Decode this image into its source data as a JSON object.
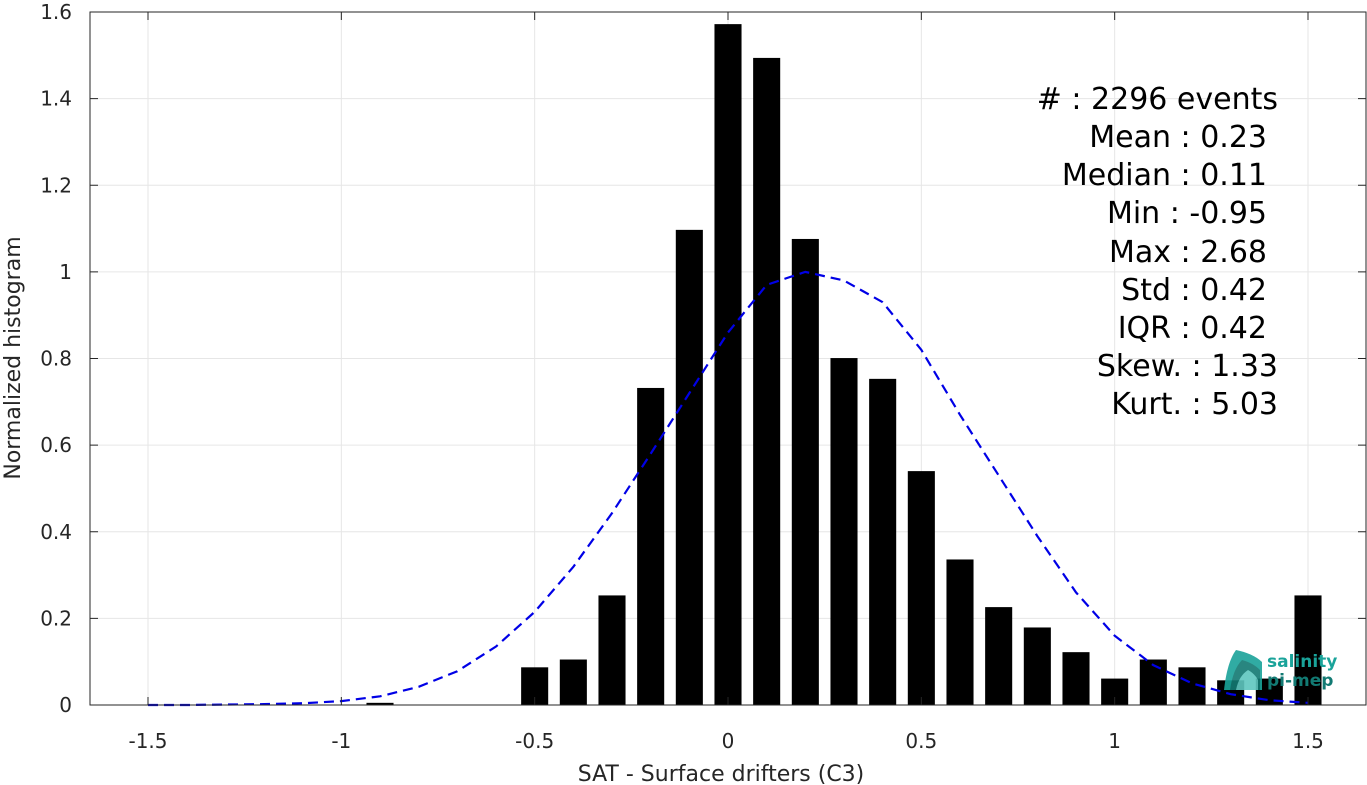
{
  "chart_data": {
    "type": "bar",
    "xlabel": "SAT - Surface drifters (C3)",
    "ylabel": "Normalized histogram",
    "xlim": [
      -1.65,
      1.65
    ],
    "ylim": [
      0,
      1.6
    ],
    "grid": true,
    "xticks": [
      -1.5,
      -1,
      -0.5,
      0,
      0.5,
      1,
      1.5
    ],
    "xtick_labels": [
      "-1.5",
      "-1",
      "-0.5",
      "0",
      "0.5",
      "1",
      "1.5"
    ],
    "yticks": [
      0,
      0.2,
      0.4,
      0.6,
      0.8,
      1,
      1.2,
      1.4,
      1.6
    ],
    "ytick_labels": [
      "0",
      "0.2",
      "0.4",
      "0.6",
      "0.8",
      "1",
      "1.2",
      "1.4",
      "1.6"
    ],
    "bar_width": 0.07,
    "bars": {
      "x": [
        -0.9,
        -0.5,
        -0.4,
        -0.3,
        -0.2,
        -0.1,
        0.0,
        0.1,
        0.2,
        0.3,
        0.4,
        0.5,
        0.6,
        0.7,
        0.8,
        0.9,
        1.0,
        1.1,
        1.2,
        1.3,
        1.4,
        1.5
      ],
      "values": [
        0.005,
        0.087,
        0.105,
        0.253,
        0.732,
        1.097,
        1.572,
        1.494,
        1.076,
        0.801,
        0.753,
        0.54,
        0.336,
        0.226,
        0.179,
        0.122,
        0.061,
        0.105,
        0.087,
        0.057,
        0.061,
        0.253
      ],
      "color": "#000000"
    },
    "fit_curve": {
      "style": "dashed",
      "color": "#0000e6",
      "x": [
        -1.5,
        -1.4,
        -1.3,
        -1.2,
        -1.1,
        -1.0,
        -0.9,
        -0.8,
        -0.7,
        -0.6,
        -0.5,
        -0.4,
        -0.3,
        -0.2,
        -0.1,
        0.0,
        0.1,
        0.2,
        0.3,
        0.4,
        0.5,
        0.6,
        0.7,
        0.8,
        0.9,
        1.0,
        1.1,
        1.2,
        1.3,
        1.4,
        1.5
      ],
      "y": [
        0.0,
        0.0,
        0.001,
        0.002,
        0.004,
        0.009,
        0.02,
        0.042,
        0.078,
        0.135,
        0.215,
        0.319,
        0.443,
        0.58,
        0.72,
        0.86,
        0.97,
        1.0,
        0.98,
        0.93,
        0.82,
        0.67,
        0.53,
        0.39,
        0.26,
        0.16,
        0.092,
        0.05,
        0.025,
        0.011,
        0.005
      ]
    },
    "annotations": [
      "#  : 2296 events",
      "Mean : 0.23",
      "Median : 0.11",
      "Min : -0.95",
      "Max : 2.68",
      "Std : 0.42",
      "IQR : 0.42",
      "Skew. : 1.33",
      "Kurt. : 5.03"
    ]
  },
  "logo": {
    "line1": "salinity",
    "line2": "pi-mep",
    "color": "#1aa39a"
  }
}
